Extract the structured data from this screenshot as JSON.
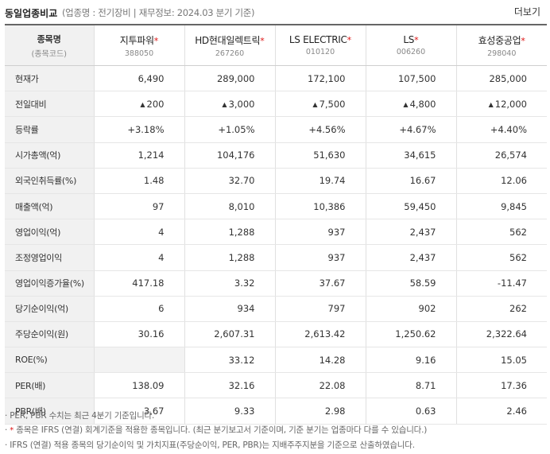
{
  "header": {
    "title": "동일업종비교",
    "subtitle": "(업종명 : 전기장비 | 재무정보: 2024.03 분기 기준)",
    "more_label": "더보기"
  },
  "table": {
    "label_header": {
      "line1": "종목명",
      "line2": "(종목코드)"
    },
    "companies": [
      {
        "name": "지투파워",
        "star": "*",
        "code": "388050"
      },
      {
        "name": "HD현대일렉트릭",
        "star": "*",
        "code": "267260"
      },
      {
        "name": "LS ELECTRIC",
        "star": "*",
        "code": "010120"
      },
      {
        "name": "LS",
        "star": "*",
        "code": "006260"
      },
      {
        "name": "효성중공업",
        "star": "*",
        "code": "298040"
      }
    ],
    "rows": [
      {
        "label": "현재가",
        "values": [
          "6,490",
          "289,000",
          "172,100",
          "107,500",
          "285,000"
        ]
      },
      {
        "label": "전일대비",
        "arrow": "▲",
        "values": [
          "200",
          "3,000",
          "7,500",
          "4,800",
          "12,000"
        ]
      },
      {
        "label": "등락률",
        "values": [
          "+3.18%",
          "+1.05%",
          "+4.56%",
          "+4.67%",
          "+4.40%"
        ]
      },
      {
        "label": "시가총액(억)",
        "values": [
          "1,214",
          "104,176",
          "51,630",
          "34,615",
          "26,574"
        ]
      },
      {
        "label": "외국인취득률(%)",
        "values": [
          "1.48",
          "32.70",
          "19.74",
          "16.67",
          "12.06"
        ]
      },
      {
        "label": "매출액(억)",
        "values": [
          "97",
          "8,010",
          "10,386",
          "59,450",
          "9,845"
        ]
      },
      {
        "label": "영업이익(억)",
        "values": [
          "4",
          "1,288",
          "937",
          "2,437",
          "562"
        ]
      },
      {
        "label": "조정영업이익",
        "values": [
          "4",
          "1,288",
          "937",
          "2,437",
          "562"
        ]
      },
      {
        "label": "영업이익증가율(%)",
        "values": [
          "417.18",
          "3.32",
          "37.67",
          "58.59",
          "-11.47"
        ]
      },
      {
        "label": "당기순이익(억)",
        "values": [
          "6",
          "934",
          "797",
          "902",
          "262"
        ]
      },
      {
        "label": "주당순이익(원)",
        "values": [
          "30.16",
          "2,607.31",
          "2,613.42",
          "1,250.62",
          "2,322.64"
        ]
      },
      {
        "label": "ROE(%)",
        "values": [
          "",
          "33.12",
          "14.28",
          "9.16",
          "15.05"
        ]
      },
      {
        "label": "PER(배)",
        "values": [
          "138.09",
          "32.16",
          "22.08",
          "8.71",
          "17.36"
        ]
      },
      {
        "label": "PBR(배)",
        "values": [
          "3.67",
          "9.33",
          "2.98",
          "0.63",
          "2.46"
        ]
      }
    ]
  },
  "notes": [
    {
      "bullet": "·",
      "star": "",
      "text": "PER, PBR 수치는 최근 4분기 기준입니다."
    },
    {
      "bullet": "·",
      "star": "*",
      "text": "종목은 IFRS (연결) 회계기준을 적용한 종목입니다. (최근 분기보고서 기준이며, 기준 분기는 업종마다 다를 수 있습니다.)"
    },
    {
      "bullet": "·",
      "star": "",
      "text": "IFRS (연결) 적용 종목의 당기순이익 및 가치지표(주당순이익, PER, PBR)는 지배주주지분을 기준으로 산출하였습니다."
    }
  ],
  "colors": {
    "up": "#dd1111",
    "label_bg": "#f1f1f1",
    "border_top": "#666666"
  }
}
